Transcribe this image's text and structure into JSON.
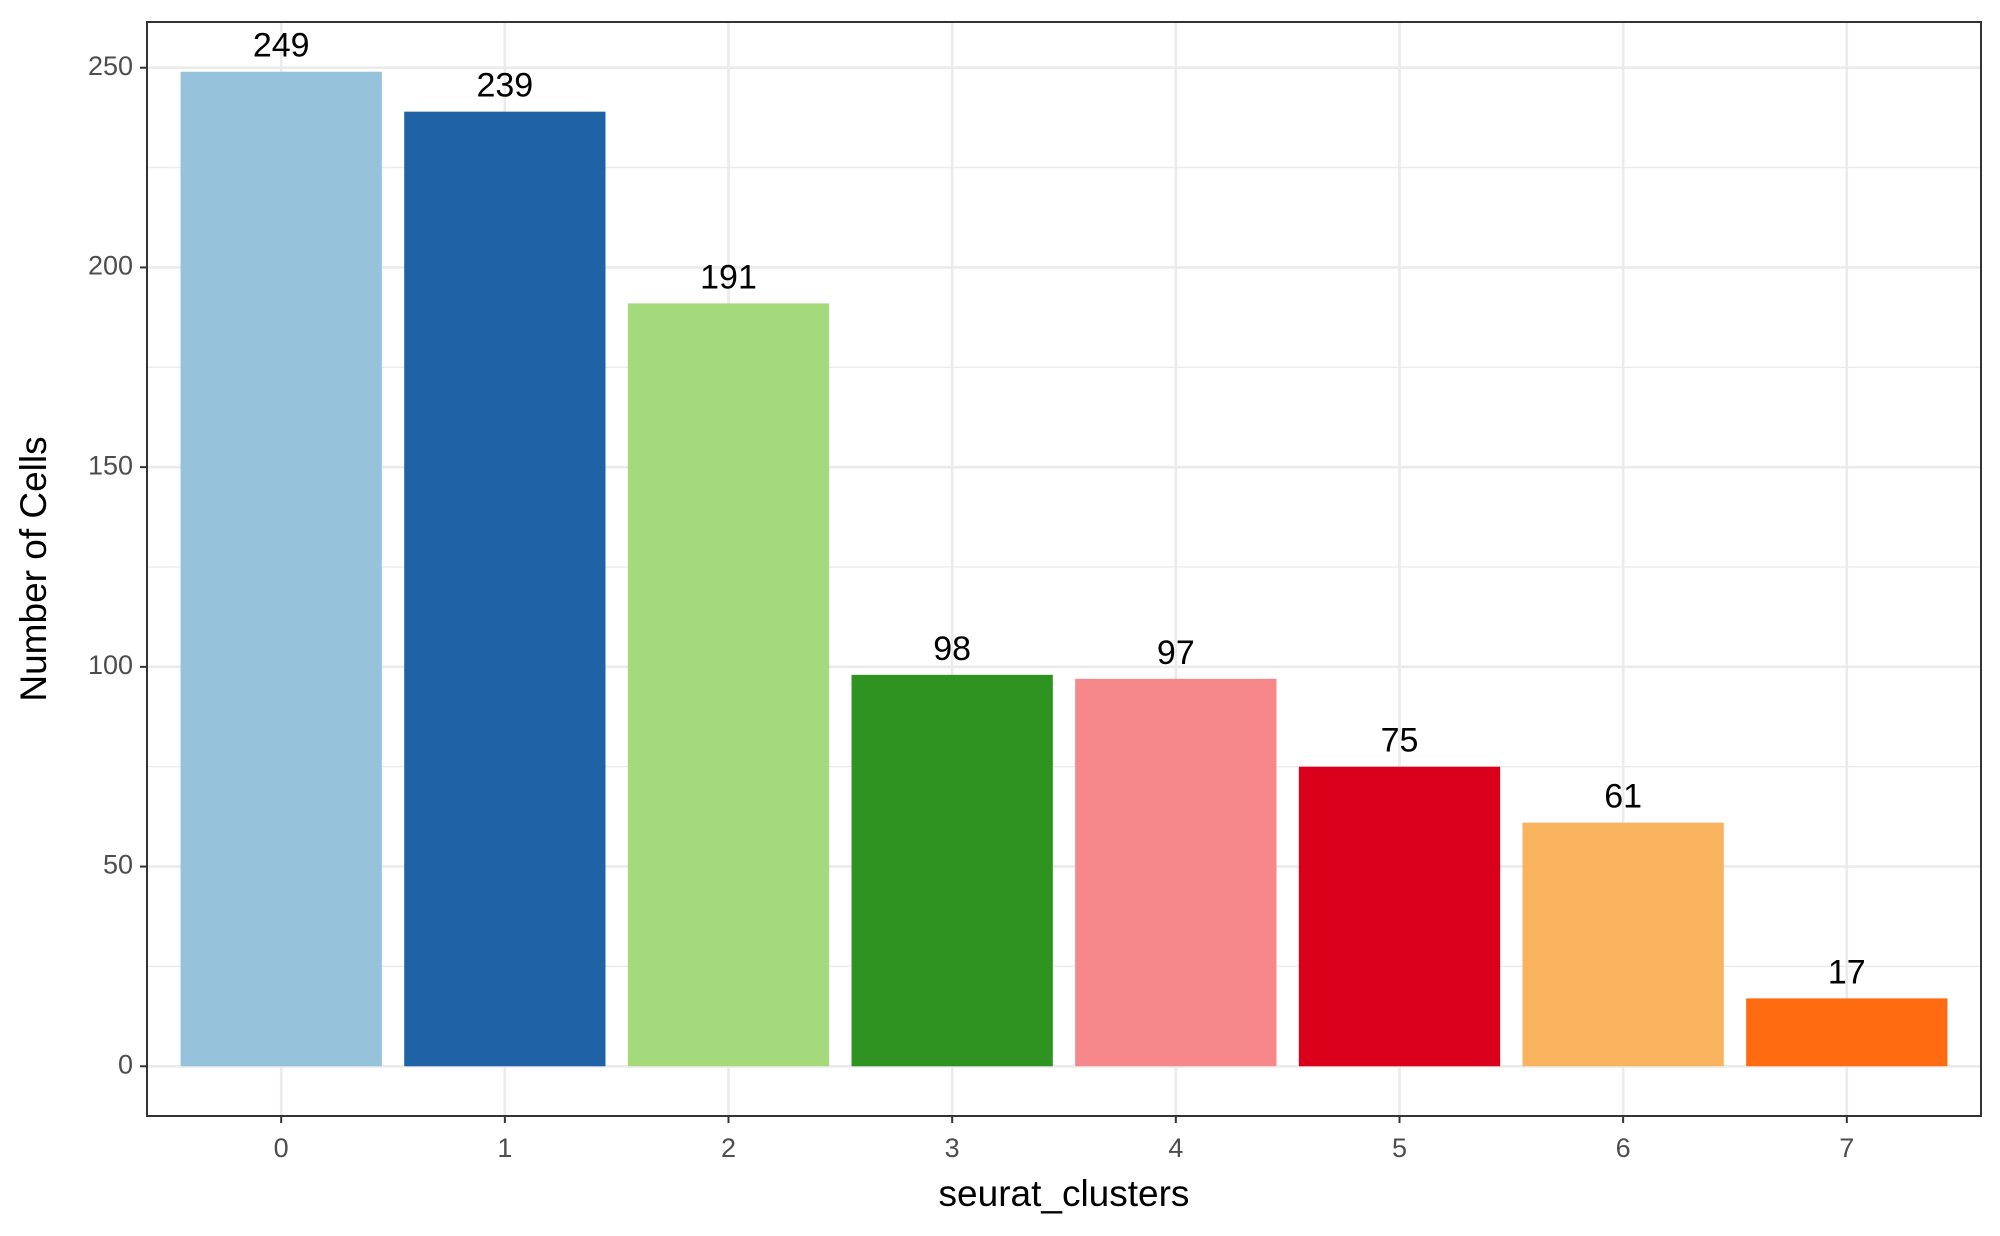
{
  "chart_data": {
    "type": "bar",
    "x_label": "seurat_clusters",
    "y_label": "Number of Cells",
    "categories": [
      "0",
      "1",
      "2",
      "3",
      "4",
      "5",
      "6",
      "7"
    ],
    "values": [
      249,
      239,
      191,
      98,
      97,
      75,
      61,
      17
    ],
    "colors": [
      "#97c2db",
      "#1f62a5",
      "#a5da7c",
      "#2e9320",
      "#f6878a",
      "#da001b",
      "#f9b35f",
      "#ff6b10"
    ],
    "ylim": [
      -12.45,
      261.45
    ],
    "yticks": [
      0,
      50,
      100,
      150,
      200,
      250
    ],
    "grid": true
  }
}
